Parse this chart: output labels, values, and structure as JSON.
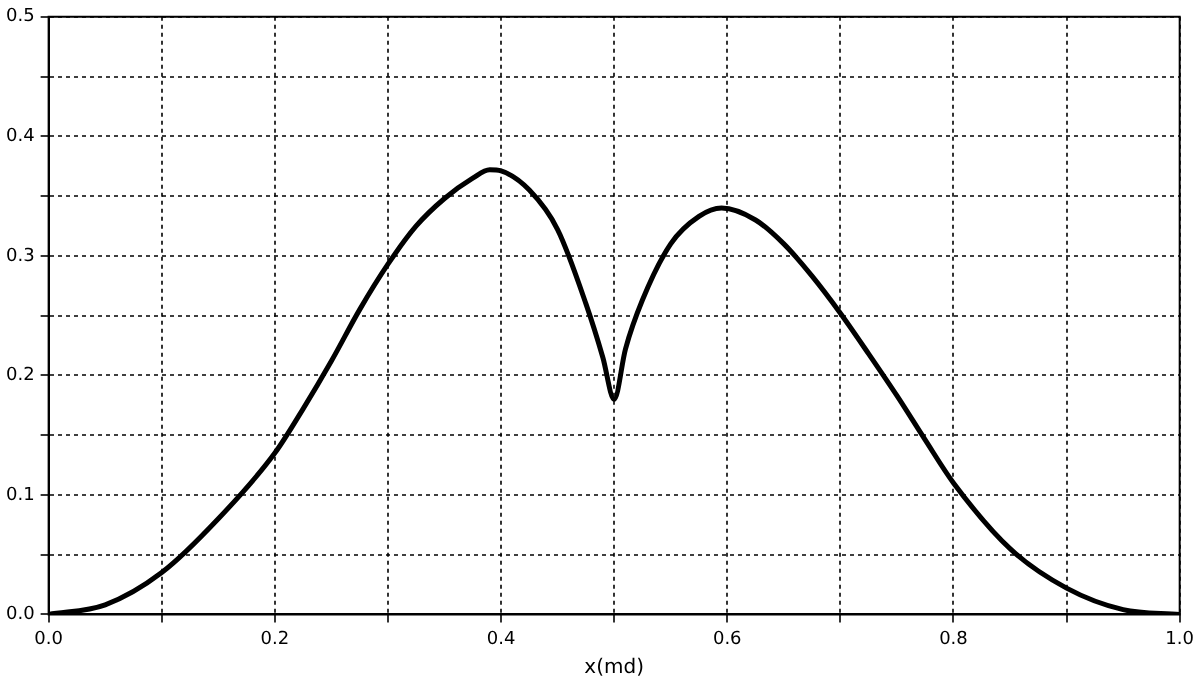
{
  "chart_data": {
    "type": "line",
    "xlabel": "x(md)",
    "grid": true,
    "marker": "none",
    "line_style": "solid",
    "xlim": [
      0,
      1
    ],
    "ylim": [
      0,
      0.5
    ],
    "xticks": [
      {
        "value": 0,
        "label": "0.0"
      },
      {
        "value": 0.1,
        "label": null
      },
      {
        "value": 0.2,
        "label": "0.2"
      },
      {
        "value": 0.3,
        "label": null
      },
      {
        "value": 0.4,
        "label": "0.4"
      },
      {
        "value": 0.5,
        "label": null
      },
      {
        "value": 0.6,
        "label": "0.6"
      },
      {
        "value": 0.7,
        "label": null
      },
      {
        "value": 0.8,
        "label": "0.8"
      },
      {
        "value": 0.9,
        "label": null
      },
      {
        "value": 1,
        "label": "1.0"
      }
    ],
    "yticks": [
      {
        "value": 0,
        "label": "0.0"
      },
      {
        "value": 0.05,
        "label": null
      },
      {
        "value": 0.1,
        "label": "0.1"
      },
      {
        "value": 0.15,
        "label": null
      },
      {
        "value": 0.2,
        "label": "0.2"
      },
      {
        "value": 0.25,
        "label": null
      },
      {
        "value": 0.3,
        "label": "0.3"
      },
      {
        "value": 0.35,
        "label": null
      },
      {
        "value": 0.4,
        "label": "0.4"
      },
      {
        "value": 0.45,
        "label": null
      },
      {
        "value": 0.5,
        "label": "0.5"
      }
    ],
    "x": [
      0,
      0.05,
      0.1,
      0.15,
      0.2,
      0.225,
      0.25,
      0.275,
      0.3,
      0.325,
      0.35,
      0.375,
      0.39,
      0.4,
      0.425,
      0.45,
      0.475,
      0.49,
      0.5,
      0.51,
      0.525,
      0.55,
      0.575,
      0.595,
      0.625,
      0.65,
      0.675,
      0.7,
      0.725,
      0.75,
      0.775,
      0.8,
      0.85,
      0.9,
      0.95,
      1
    ],
    "series": [
      {
        "color": "#000000",
        "values": [
          0,
          0.008,
          0.035,
          0.08,
          0.135,
          0.172,
          0.212,
          0.255,
          0.293,
          0.325,
          0.348,
          0.365,
          0.372,
          0.371,
          0.355,
          0.322,
          0.26,
          0.215,
          0.18,
          0.222,
          0.263,
          0.31,
          0.333,
          0.34,
          0.33,
          0.31,
          0.283,
          0.252,
          0.218,
          0.183,
          0.146,
          0.11,
          0.055,
          0.022,
          0.004,
          0
        ]
      }
    ]
  }
}
